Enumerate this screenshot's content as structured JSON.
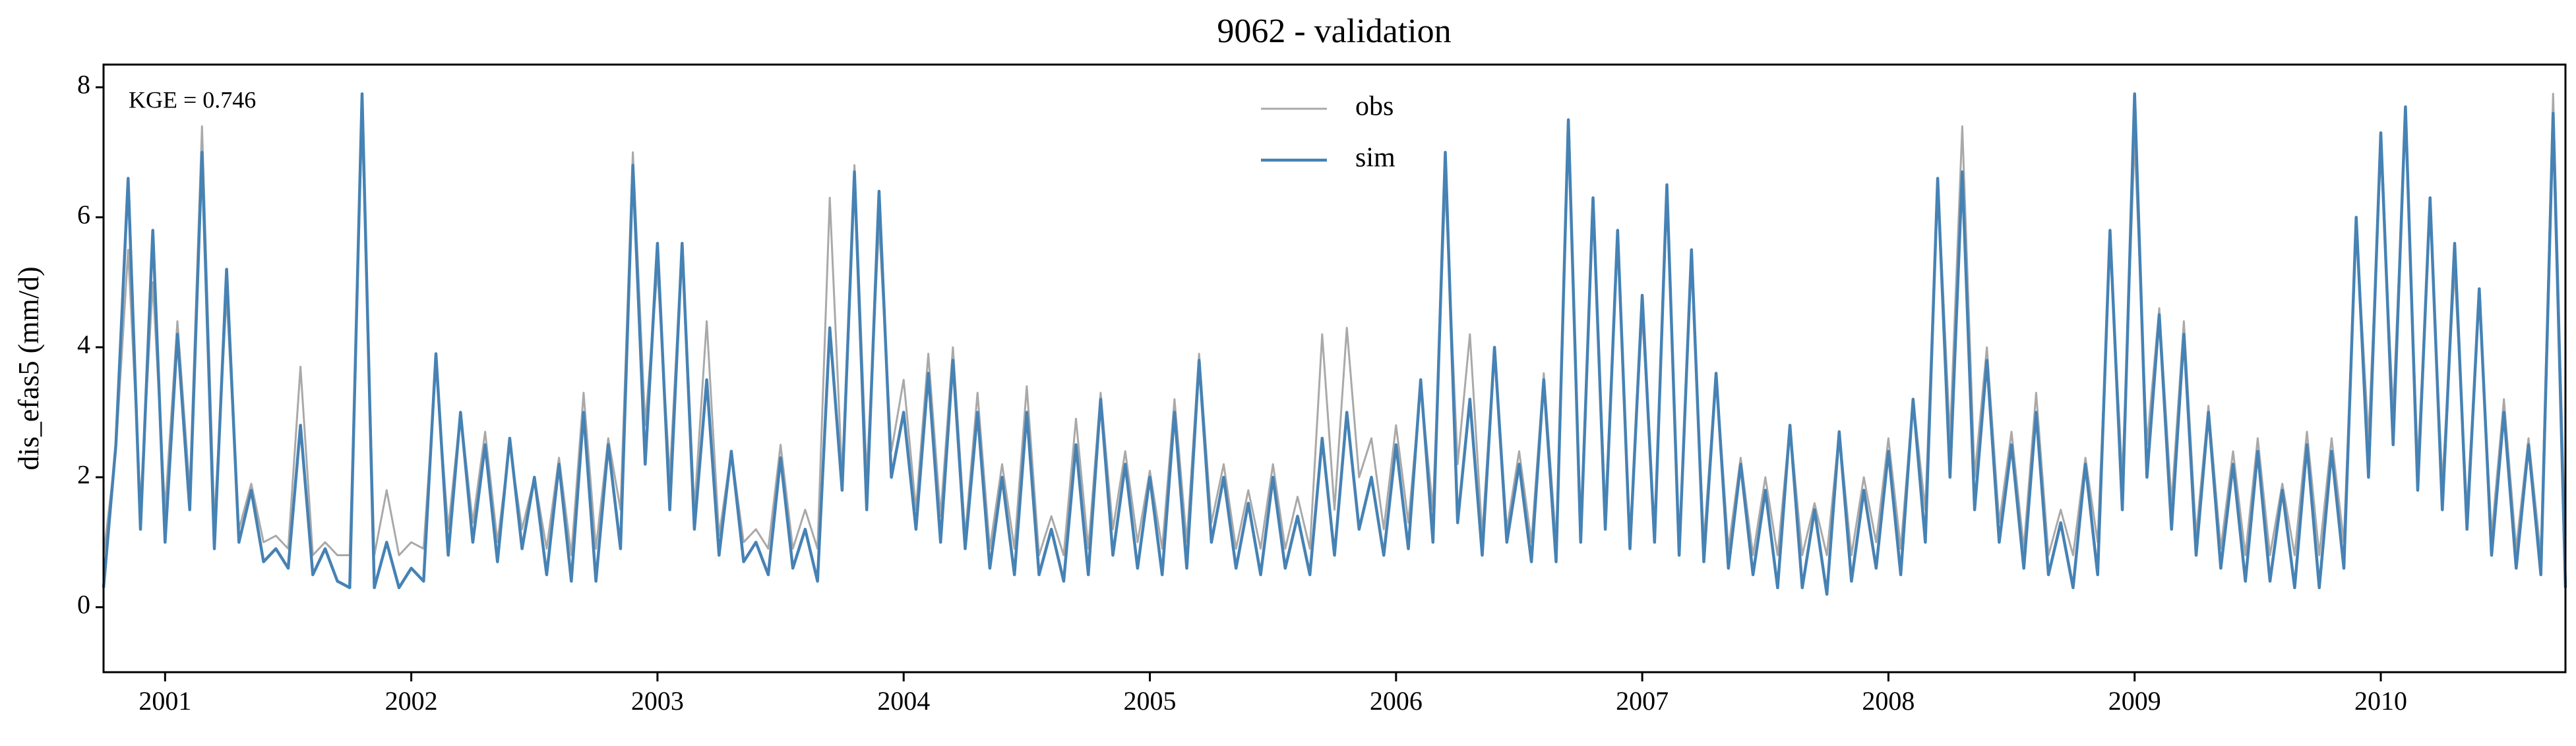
{
  "chart_data": {
    "type": "line",
    "title": "9062 - validation",
    "y_label": "dis_efas5 (mm/d)",
    "annotation": "KGE = 0.746",
    "legend": "upper center",
    "x": [
      2000.75,
      2000.8,
      2000.85,
      2000.9,
      2000.95,
      2001,
      2001.05,
      2001.1,
      2001.15,
      2001.2,
      2001.25,
      2001.3,
      2001.35,
      2001.4,
      2001.45,
      2001.5,
      2001.55,
      2001.6,
      2001.65,
      2001.7,
      2001.75,
      2001.8,
      2001.85,
      2001.9,
      2001.95,
      2002,
      2002.05,
      2002.1,
      2002.15,
      2002.2,
      2002.25,
      2002.3,
      2002.35,
      2002.4,
      2002.45,
      2002.5,
      2002.55,
      2002.6,
      2002.65,
      2002.7,
      2002.75,
      2002.8,
      2002.85,
      2002.9,
      2002.95,
      2003,
      2003.05,
      2003.1,
      2003.15,
      2003.2,
      2003.25,
      2003.3,
      2003.35,
      2003.4,
      2003.45,
      2003.5,
      2003.55,
      2003.6,
      2003.65,
      2003.7,
      2003.75,
      2003.8,
      2003.85,
      2003.9,
      2003.95,
      2004,
      2004.05,
      2004.1,
      2004.15,
      2004.2,
      2004.25,
      2004.3,
      2004.35,
      2004.4,
      2004.45,
      2004.5,
      2004.55,
      2004.6,
      2004.65,
      2004.7,
      2004.75,
      2004.8,
      2004.85,
      2004.9,
      2004.95,
      2005,
      2005.05,
      2005.1,
      2005.15,
      2005.2,
      2005.25,
      2005.3,
      2005.35,
      2005.4,
      2005.45,
      2005.5,
      2005.55,
      2005.6,
      2005.65,
      2005.7,
      2005.75,
      2005.8,
      2005.85,
      2005.9,
      2005.95,
      2006,
      2006.05,
      2006.1,
      2006.15,
      2006.2,
      2006.25,
      2006.3,
      2006.35,
      2006.4,
      2006.45,
      2006.5,
      2006.55,
      2006.6,
      2006.65,
      2006.7,
      2006.75,
      2006.8,
      2006.85,
      2006.9,
      2006.95,
      2007,
      2007.05,
      2007.1,
      2007.15,
      2007.2,
      2007.25,
      2007.3,
      2007.35,
      2007.4,
      2007.45,
      2007.5,
      2007.55,
      2007.6,
      2007.65,
      2007.7,
      2007.75,
      2007.8,
      2007.85,
      2007.9,
      2007.95,
      2008,
      2008.05,
      2008.1,
      2008.15,
      2008.2,
      2008.25,
      2008.3,
      2008.35,
      2008.4,
      2008.45,
      2008.5,
      2008.55,
      2008.6,
      2008.65,
      2008.7,
      2008.75,
      2008.8,
      2008.85,
      2008.9,
      2008.95,
      2009,
      2009.05,
      2009.1,
      2009.15,
      2009.2,
      2009.25,
      2009.3,
      2009.35,
      2009.4,
      2009.45,
      2009.5,
      2009.55,
      2009.6,
      2009.65,
      2009.7,
      2009.75,
      2009.8,
      2009.85,
      2009.9,
      2009.95,
      2010,
      2010.05,
      2010.1,
      2010.15,
      2010.2,
      2010.25,
      2010.3,
      2010.35,
      2010.4,
      2010.45,
      2010.5,
      2010.55,
      2010.6,
      2010.65,
      2010.7,
      2010.75
    ],
    "series": [
      {
        "name": "obs",
        "color": "#a9a9a9",
        "values": [
          0.8,
          2.4,
          5.5,
          1.6,
          5.0,
          1.5,
          4.4,
          1.8,
          7.4,
          1.3,
          4.8,
          1.2,
          1.9,
          1.0,
          1.1,
          0.9,
          3.7,
          0.8,
          1.0,
          0.8,
          0.8,
          7.5,
          0.8,
          1.8,
          0.8,
          1.0,
          0.9,
          3.7,
          1.2,
          3.0,
          1.3,
          2.7,
          1.0,
          2.5,
          1.2,
          2.0,
          0.9,
          2.3,
          0.8,
          3.3,
          0.9,
          2.6,
          1.5,
          7.0,
          2.8,
          5.2,
          2.0,
          5.6,
          1.5,
          4.4,
          1.1,
          2.4,
          1.0,
          1.2,
          0.9,
          2.5,
          0.9,
          1.5,
          0.9,
          6.3,
          2.0,
          6.8,
          2.0,
          5.9,
          2.4,
          3.5,
          1.5,
          3.9,
          1.4,
          4.0,
          1.1,
          3.3,
          0.9,
          2.2,
          0.9,
          3.4,
          0.8,
          1.4,
          0.8,
          2.9,
          0.9,
          3.3,
          1.2,
          2.4,
          1.0,
          2.1,
          0.9,
          3.2,
          1.0,
          3.9,
          1.3,
          2.2,
          0.9,
          1.8,
          0.9,
          2.2,
          0.9,
          1.7,
          0.9,
          4.2,
          1.5,
          4.3,
          2.0,
          2.6,
          1.2,
          2.8,
          1.3,
          3.4,
          1.5,
          6.5,
          2.2,
          4.2,
          1.1,
          4.0,
          1.2,
          2.4,
          1.0,
          3.6,
          1.0,
          7.3,
          1.3,
          6.2,
          1.5,
          5.6,
          1.1,
          4.5,
          1.2,
          6.3,
          1.0,
          5.3,
          1.0,
          3.6,
          0.9,
          2.3,
          0.8,
          2.0,
          0.8,
          2.8,
          0.8,
          1.6,
          0.8,
          2.7,
          0.8,
          2.0,
          1.0,
          2.6,
          0.9,
          3.2,
          1.5,
          6.6,
          2.6,
          7.4,
          2.0,
          4.0,
          1.3,
          2.7,
          0.9,
          3.3,
          0.8,
          1.5,
          0.8,
          2.3,
          1.0,
          5.6,
          2.0,
          7.2,
          2.5,
          4.6,
          1.6,
          4.4,
          1.1,
          3.1,
          0.9,
          2.4,
          0.8,
          2.6,
          0.8,
          1.9,
          0.8,
          2.7,
          0.8,
          2.6,
          1.0,
          5.9,
          2.6,
          7.0,
          3.0,
          7.5,
          2.2,
          6.1,
          1.9,
          5.2,
          1.5,
          4.8,
          1.1,
          3.2,
          0.9,
          2.6,
          0.8,
          7.9,
          0.8
        ]
      },
      {
        "name": "sim",
        "color": "#4682b4",
        "values": [
          0.3,
          2.5,
          6.6,
          1.2,
          5.8,
          1.0,
          4.2,
          1.5,
          7.0,
          0.9,
          5.2,
          1.0,
          1.8,
          0.7,
          0.9,
          0.6,
          2.8,
          0.5,
          0.9,
          0.4,
          0.3,
          7.9,
          0.3,
          1.0,
          0.3,
          0.6,
          0.4,
          3.9,
          0.8,
          3.0,
          1.0,
          2.5,
          0.7,
          2.6,
          0.9,
          2.0,
          0.5,
          2.2,
          0.4,
          3.0,
          0.4,
          2.5,
          0.9,
          6.8,
          2.2,
          5.6,
          1.5,
          5.6,
          1.2,
          3.5,
          0.8,
          2.4,
          0.7,
          1.0,
          0.5,
          2.3,
          0.6,
          1.2,
          0.4,
          4.3,
          1.8,
          6.7,
          1.5,
          6.4,
          2.0,
          3.0,
          1.2,
          3.6,
          1.0,
          3.8,
          0.9,
          3.0,
          0.6,
          2.0,
          0.5,
          3.0,
          0.5,
          1.2,
          0.4,
          2.5,
          0.5,
          3.2,
          0.8,
          2.2,
          0.6,
          2.0,
          0.5,
          3.0,
          0.6,
          3.8,
          1.0,
          2.0,
          0.6,
          1.6,
          0.5,
          2.0,
          0.6,
          1.4,
          0.5,
          2.6,
          0.8,
          3.0,
          1.2,
          2.0,
          0.8,
          2.5,
          0.9,
          3.5,
          1.0,
          7.0,
          1.3,
          3.2,
          0.8,
          4.0,
          1.0,
          2.2,
          0.7,
          3.5,
          0.7,
          7.5,
          1.0,
          6.3,
          1.2,
          5.8,
          0.9,
          4.8,
          1.0,
          6.5,
          0.8,
          5.5,
          0.7,
          3.6,
          0.6,
          2.2,
          0.5,
          1.8,
          0.3,
          2.8,
          0.3,
          1.5,
          0.2,
          2.7,
          0.4,
          1.8,
          0.6,
          2.4,
          0.5,
          3.2,
          1.0,
          6.6,
          2.0,
          6.7,
          1.5,
          3.8,
          1.0,
          2.5,
          0.6,
          3.0,
          0.5,
          1.3,
          0.3,
          2.2,
          0.5,
          5.8,
          1.5,
          7.9,
          2.0,
          4.5,
          1.2,
          4.2,
          0.8,
          3.0,
          0.6,
          2.2,
          0.4,
          2.4,
          0.4,
          1.8,
          0.3,
          2.5,
          0.3,
          2.4,
          0.6,
          6.0,
          2.0,
          7.3,
          2.5,
          7.7,
          1.8,
          6.3,
          1.5,
          5.6,
          1.2,
          4.9,
          0.8,
          3.0,
          0.6,
          2.5,
          0.5,
          7.6,
          0.3
        ]
      }
    ],
    "xlim": [
      2000.75,
      2010.75
    ],
    "ylim": [
      -1,
      8.35
    ],
    "xticks": [
      2001,
      2002,
      2003,
      2004,
      2005,
      2006,
      2007,
      2008,
      2009,
      2010
    ],
    "yticks": [
      0,
      2,
      4,
      6,
      8
    ]
  }
}
